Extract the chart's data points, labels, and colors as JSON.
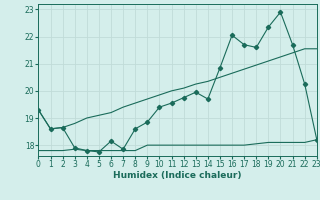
{
  "xlabel": "Humidex (Indice chaleur)",
  "bg_color": "#d4eeeb",
  "grid_color": "#c0dcd8",
  "line_color": "#1a6b5a",
  "xmin": 0,
  "xmax": 23,
  "ymin": 17.6,
  "ymax": 23.2,
  "yticks": [
    18,
    19,
    20,
    21,
    22,
    23
  ],
  "xticks": [
    0,
    1,
    2,
    3,
    4,
    5,
    6,
    7,
    8,
    9,
    10,
    11,
    12,
    13,
    14,
    15,
    16,
    17,
    18,
    19,
    20,
    21,
    22,
    23
  ],
  "line1_x": [
    0,
    1,
    2,
    3,
    4,
    5,
    6,
    7,
    8,
    9,
    10,
    11,
    12,
    13,
    14,
    15,
    16,
    17,
    18,
    19,
    20,
    21,
    22,
    23
  ],
  "line1_y": [
    19.3,
    18.6,
    18.65,
    17.9,
    17.8,
    17.75,
    18.15,
    17.85,
    18.6,
    18.85,
    19.4,
    19.55,
    19.75,
    19.95,
    19.7,
    20.85,
    22.05,
    21.7,
    21.6,
    22.35,
    22.9,
    21.7,
    20.25,
    18.2
  ],
  "line2_x": [
    0,
    1,
    2,
    3,
    4,
    5,
    6,
    7,
    8,
    9,
    10,
    11,
    12,
    13,
    14,
    15,
    16,
    17,
    18,
    19,
    20,
    21,
    22,
    23
  ],
  "line2_y": [
    19.3,
    18.6,
    18.65,
    18.8,
    19.0,
    19.1,
    19.2,
    19.4,
    19.55,
    19.7,
    19.85,
    20.0,
    20.1,
    20.25,
    20.35,
    20.5,
    20.65,
    20.8,
    20.95,
    21.1,
    21.25,
    21.4,
    21.55,
    21.55
  ],
  "line3_x": [
    0,
    1,
    2,
    3,
    4,
    5,
    6,
    7,
    8,
    9,
    10,
    11,
    12,
    13,
    14,
    15,
    16,
    17,
    18,
    19,
    20,
    21,
    22,
    23
  ],
  "line3_y": [
    17.8,
    17.8,
    17.8,
    17.85,
    17.8,
    17.8,
    17.8,
    17.8,
    17.8,
    18.0,
    18.0,
    18.0,
    18.0,
    18.0,
    18.0,
    18.0,
    18.0,
    18.0,
    18.05,
    18.1,
    18.1,
    18.1,
    18.1,
    18.2
  ]
}
